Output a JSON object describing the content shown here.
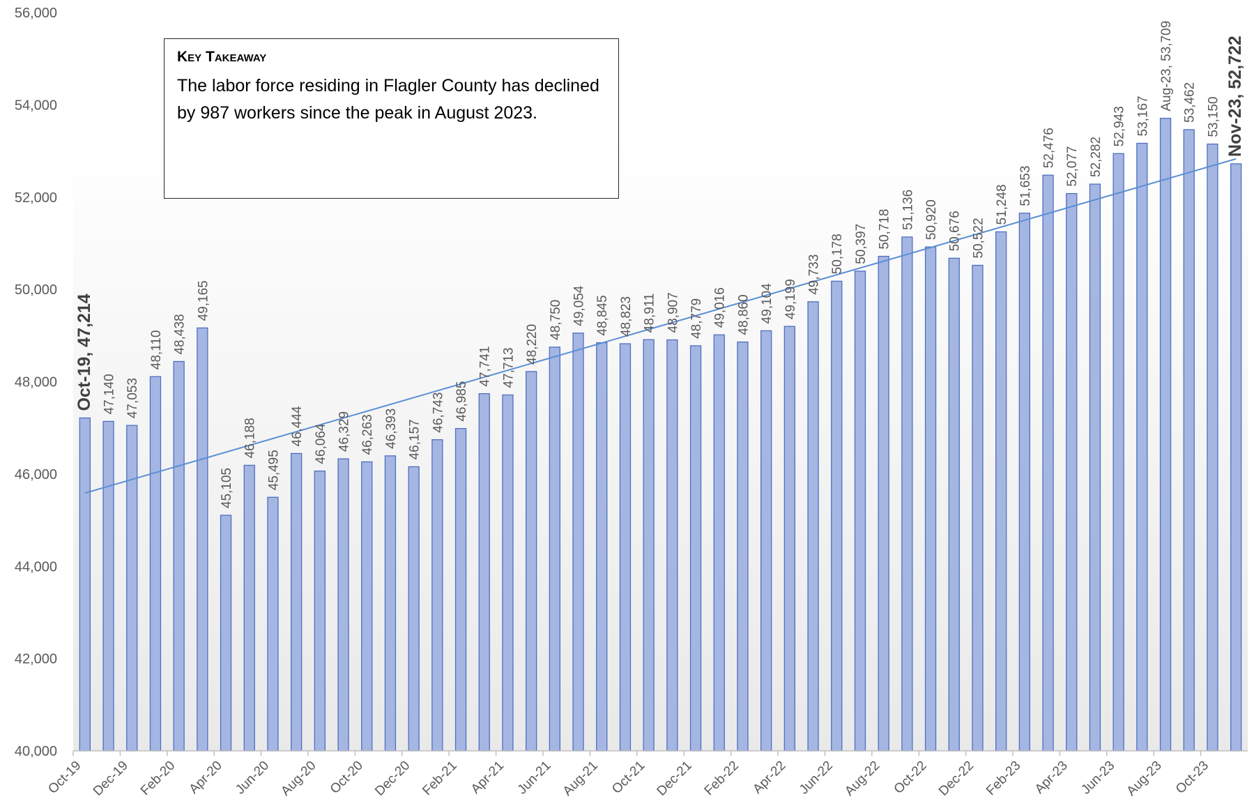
{
  "colors": {
    "bar_fill": "#a5b6e3",
    "bar_stroke": "#4f6fbf",
    "trendline": "#5b8fd4",
    "gradient_bottom": "#e9e9e9"
  },
  "takeaway": {
    "title": "Key Takeaway",
    "text": "The labor force residing in Flagler County has declined by 987 workers since the peak in August 2023."
  },
  "chart_data": {
    "type": "bar",
    "title": "",
    "xlabel": "",
    "ylabel": "",
    "ylim": [
      40000,
      56000
    ],
    "yticks": [
      40000,
      42000,
      44000,
      46000,
      48000,
      50000,
      52000,
      54000,
      56000
    ],
    "ytick_labels": [
      "40,000",
      "42,000",
      "44,000",
      "46,000",
      "48,000",
      "50,000",
      "52,000",
      "54,000",
      "56,000"
    ],
    "xtick_labels": [
      "Oct-19",
      "Dec-19",
      "Feb-20",
      "Apr-20",
      "Jun-20",
      "Aug-20",
      "Oct-20",
      "Dec-20",
      "Feb-21",
      "Apr-21",
      "Jun-21",
      "Aug-21",
      "Oct-21",
      "Dec-21",
      "Feb-22",
      "Apr-22",
      "Jun-22",
      "Aug-22",
      "Oct-22",
      "Dec-22",
      "Feb-23",
      "Apr-23",
      "Jun-23",
      "Aug-23",
      "Oct-23"
    ],
    "grid": false,
    "trendline": "linear",
    "categories": [
      "Oct-19",
      "Nov-19",
      "Dec-19",
      "Jan-20",
      "Feb-20",
      "Mar-20",
      "Apr-20",
      "May-20",
      "Jun-20",
      "Jul-20",
      "Aug-20",
      "Sep-20",
      "Oct-20",
      "Nov-20",
      "Dec-20",
      "Jan-21",
      "Feb-21",
      "Mar-21",
      "Apr-21",
      "May-21",
      "Jun-21",
      "Jul-21",
      "Aug-21",
      "Sep-21",
      "Oct-21",
      "Nov-21",
      "Dec-21",
      "Jan-22",
      "Feb-22",
      "Mar-22",
      "Apr-22",
      "May-22",
      "Jun-22",
      "Jul-22",
      "Aug-22",
      "Sep-22",
      "Oct-22",
      "Nov-22",
      "Dec-22",
      "Jan-23",
      "Feb-23",
      "Mar-23",
      "Apr-23",
      "May-23",
      "Jun-23",
      "Jul-23",
      "Aug-23",
      "Sep-23",
      "Oct-23",
      "Nov-23"
    ],
    "values": [
      47214,
      47140,
      47053,
      48110,
      48438,
      49165,
      45105,
      46188,
      45495,
      46444,
      46064,
      46329,
      46263,
      46393,
      46157,
      46743,
      46985,
      47741,
      47713,
      48220,
      48750,
      49054,
      48845,
      48823,
      48911,
      48907,
      48779,
      49016,
      48860,
      49104,
      49199,
      49733,
      50178,
      50397,
      50718,
      51136,
      50920,
      50676,
      50522,
      51248,
      51653,
      52476,
      52077,
      52282,
      52943,
      53167,
      53709,
      53462,
      53150,
      52722
    ],
    "data_labels": [
      "Oct-19, 47,214",
      "47,140",
      "47,053",
      "48,110",
      "48,438",
      "49,165",
      "45,105",
      "46,188",
      "45,495",
      "46,444",
      "46,064",
      "46,329",
      "46,263",
      "46,393",
      "46,157",
      "46,743",
      "46,985",
      "47,741",
      "47,713",
      "48,220",
      "48,750",
      "49,054",
      "48,845",
      "48,823",
      "48,911",
      "48,907",
      "48,779",
      "49,016",
      "48,860",
      "49,104",
      "49,199",
      "49,733",
      "50,178",
      "50,397",
      "50,718",
      "51,136",
      "50,920",
      "50,676",
      "50,522",
      "51,248",
      "51,653",
      "52,476",
      "52,077",
      "52,282",
      "52,943",
      "53,167",
      "Aug-23, 53,709",
      "53,462",
      "53,150",
      "Nov-23, 52,722"
    ],
    "bold_labels": [
      0,
      49
    ]
  }
}
